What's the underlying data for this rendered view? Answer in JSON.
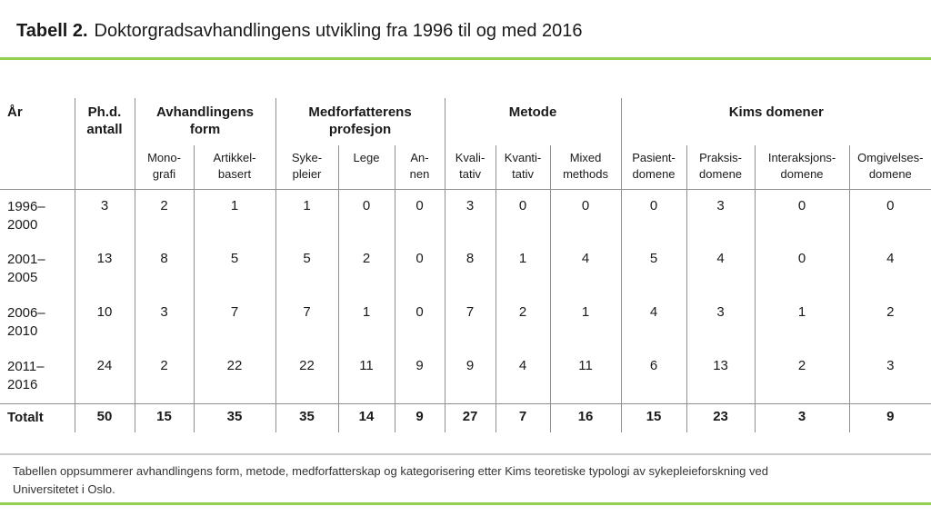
{
  "colors": {
    "accent_green": "#92D050",
    "table_border": "#8f8f8f",
    "note_divider": "#c9c9c9"
  },
  "title": {
    "prefix": "Tabell 2.",
    "text": "Doktorgradsavhandlingens utvikling fra 1996 til og med 2016"
  },
  "table": {
    "corner": {
      "year": "År",
      "count": "Ph.d.\nantall"
    },
    "groups": [
      "Avhandlingens\nform",
      "Medforfatterens\nprofesjon",
      "Metode",
      "Kims domener"
    ],
    "subheaders": [
      "Mono-\ngrafi",
      "Artikkel-\nbasert",
      "Syke-\npleier",
      "Lege",
      "An-\nnen",
      "Kvali-\ntativ",
      "Kvanti-\ntativ",
      "Mixed\nmethods",
      "Pasient-\ndomene",
      "Praksis-\ndomene",
      "Interaksjons-\ndomene",
      "Omgivelses-\ndomene"
    ],
    "rows": [
      {
        "label": "1996–\n2000",
        "values": [
          3,
          2,
          1,
          1,
          0,
          0,
          3,
          0,
          0,
          0,
          3,
          0,
          0
        ],
        "total": false
      },
      {
        "label": "2001–\n2005",
        "values": [
          13,
          8,
          5,
          5,
          2,
          0,
          8,
          1,
          4,
          5,
          4,
          0,
          4
        ],
        "total": false
      },
      {
        "label": "2006–\n2010",
        "values": [
          10,
          3,
          7,
          7,
          1,
          0,
          7,
          2,
          1,
          4,
          3,
          1,
          2
        ],
        "total": false
      },
      {
        "label": "2011–\n2016",
        "values": [
          24,
          2,
          22,
          22,
          11,
          9,
          9,
          4,
          11,
          6,
          13,
          2,
          3
        ],
        "total": false
      },
      {
        "label": "Totalt",
        "values": [
          50,
          15,
          35,
          35,
          14,
          9,
          27,
          7,
          16,
          15,
          23,
          3,
          9
        ],
        "total": true
      }
    ]
  },
  "footnote": "Tabellen oppsummerer avhandlingens form, metode, medforfatterskap og kategorisering etter Kims teoretiske typologi av sykepleieforskning ved\nUniversitetet i Oslo."
}
